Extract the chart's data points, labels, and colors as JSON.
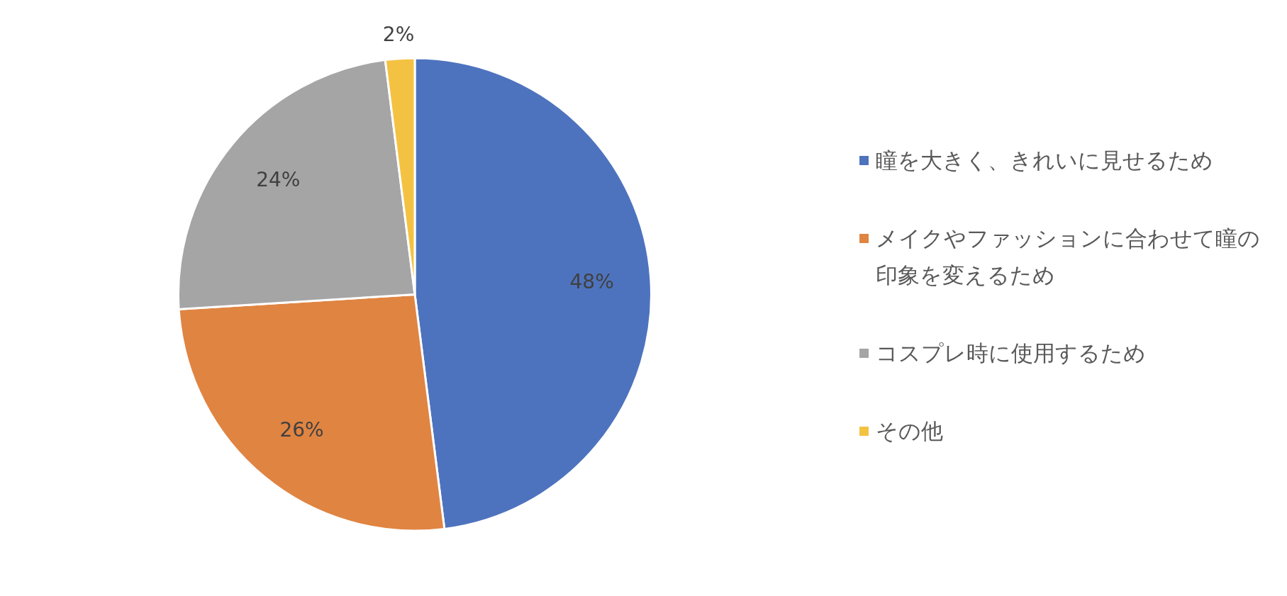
{
  "chart_data": {
    "type": "pie",
    "categories": [
      "瞳を大きく、きれいに見せるため",
      "メイクやファッションに合わせて瞳の印象を変えるため",
      "コスプレ時に使用するため",
      "その他"
    ],
    "values": [
      48,
      26,
      24,
      2
    ],
    "colors": [
      "#4e73be",
      "#e08442",
      "#a5a5a5",
      "#f4c242"
    ],
    "value_labels": [
      "48%",
      "26%",
      "24%",
      "2%"
    ],
    "legend": "right"
  }
}
